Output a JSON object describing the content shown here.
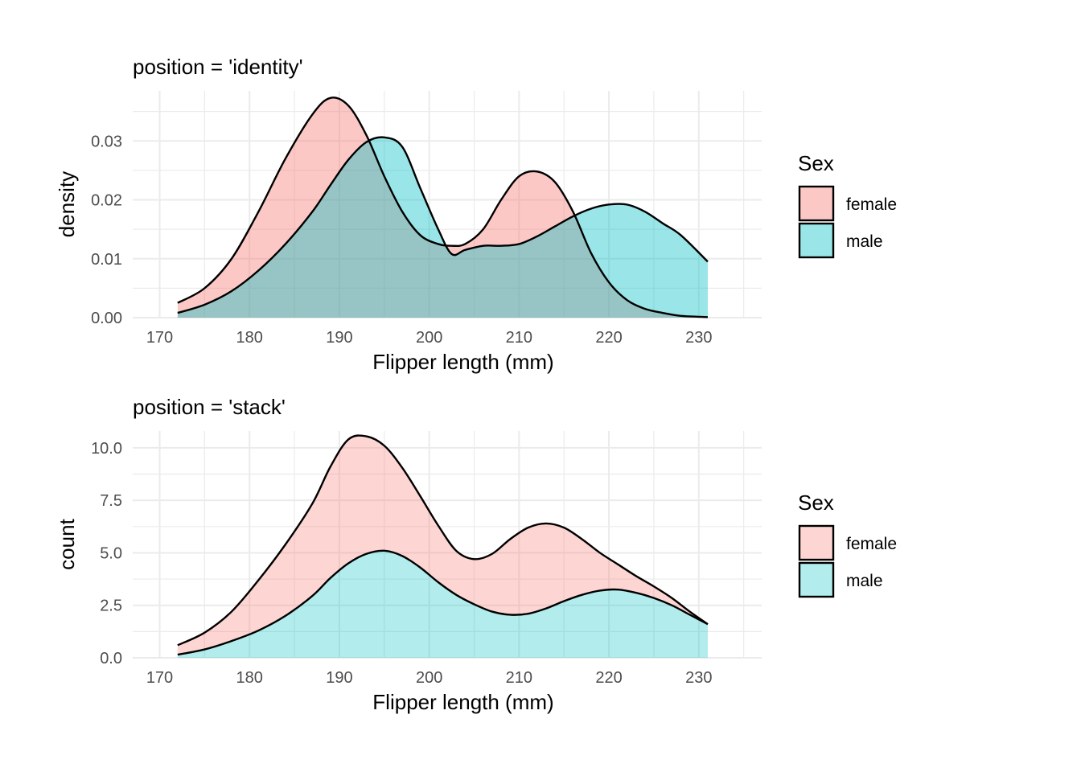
{
  "chart_data": [
    {
      "type": "area",
      "title": "position = 'identity'",
      "xlabel": "Flipper length (mm)",
      "ylabel": "density",
      "xlim": [
        167,
        237
      ],
      "ylim": [
        0,
        0.0385
      ],
      "x_ticks": [
        "170",
        "180",
        "190",
        "200",
        "210",
        "220",
        "230"
      ],
      "y_ticks": [
        "0.00",
        "0.01",
        "0.02",
        "0.03"
      ],
      "y_tick_values": [
        0,
        0.01,
        0.02,
        0.03
      ],
      "position": "identity",
      "grid": true,
      "legend": {
        "title": "Sex",
        "placement": "right",
        "entries": [
          "female",
          "male"
        ]
      },
      "x": [
        172,
        175,
        178,
        181,
        184,
        187,
        189,
        191,
        193,
        195,
        197,
        199,
        201,
        202.5,
        204,
        206,
        208,
        210,
        212,
        214,
        216,
        218,
        220,
        222,
        224,
        226,
        228,
        231
      ],
      "series": [
        {
          "name": "female",
          "color": "#f8766d",
          "values": [
            0.0025,
            0.005,
            0.01,
            0.018,
            0.027,
            0.0345,
            0.0373,
            0.036,
            0.031,
            0.024,
            0.018,
            0.014,
            0.0125,
            0.0122,
            0.0125,
            0.015,
            0.02,
            0.024,
            0.0248,
            0.023,
            0.018,
            0.011,
            0.006,
            0.003,
            0.0015,
            0.0008,
            0.0003,
            0.0001
          ]
        },
        {
          "name": "male",
          "color": "#00bfc4",
          "values": [
            0.0008,
            0.0022,
            0.0045,
            0.008,
            0.0125,
            0.018,
            0.0225,
            0.0268,
            0.0298,
            0.0306,
            0.029,
            0.022,
            0.015,
            0.0108,
            0.0115,
            0.0122,
            0.0122,
            0.0125,
            0.0138,
            0.0155,
            0.0172,
            0.0185,
            0.0192,
            0.0192,
            0.018,
            0.016,
            0.014,
            0.0095
          ]
        }
      ]
    },
    {
      "type": "area",
      "title": "position = 'stack'",
      "xlabel": "Flipper length (mm)",
      "ylabel": "count",
      "xlim": [
        167,
        237
      ],
      "ylim": [
        0,
        10.8
      ],
      "x_ticks": [
        "170",
        "180",
        "190",
        "200",
        "210",
        "220",
        "230"
      ],
      "y_ticks": [
        "0.0",
        "2.5",
        "5.0",
        "7.5",
        "10.0"
      ],
      "y_tick_values": [
        0,
        2.5,
        5,
        7.5,
        10
      ],
      "position": "stack",
      "grid": true,
      "legend": {
        "title": "Sex",
        "placement": "right",
        "entries": [
          "female",
          "male"
        ]
      },
      "x": [
        172,
        175,
        178,
        181,
        184,
        187,
        189,
        191,
        193,
        195,
        197,
        199,
        201,
        203,
        205,
        207,
        209,
        211,
        213,
        215,
        217,
        219,
        221,
        223,
        225,
        227,
        229,
        231
      ],
      "series": [
        {
          "name": "male",
          "color": "#00bfc4",
          "values": [
            0.15,
            0.4,
            0.8,
            1.3,
            2.0,
            2.95,
            3.8,
            4.5,
            4.95,
            5.1,
            4.85,
            4.3,
            3.6,
            3.0,
            2.55,
            2.2,
            2.05,
            2.1,
            2.35,
            2.7,
            3.0,
            3.2,
            3.25,
            3.1,
            2.85,
            2.5,
            2.05,
            1.6
          ]
        },
        {
          "name": "female",
          "color": "#f8766d",
          "values": [
            0.45,
            0.8,
            1.4,
            2.4,
            3.4,
            4.4,
            5.3,
            5.9,
            5.6,
            5.0,
            4.2,
            3.4,
            2.7,
            2.1,
            2.15,
            2.75,
            3.6,
            4.1,
            4.05,
            3.5,
            2.65,
            1.8,
            1.2,
            0.8,
            0.55,
            0.35,
            0.15,
            0.0
          ]
        }
      ]
    }
  ]
}
